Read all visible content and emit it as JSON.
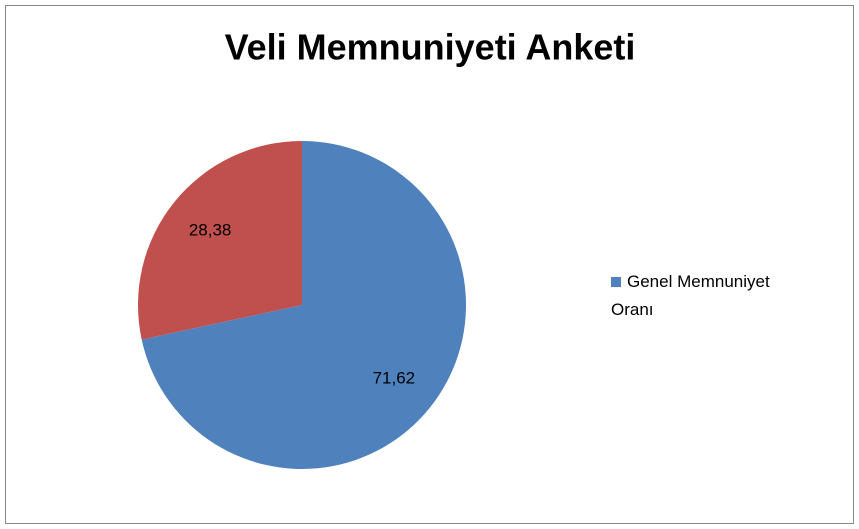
{
  "chart_data": {
    "type": "pie",
    "title": "Veli Memnuniyeti Anketi",
    "categories": [
      "Genel Memnuniyet Oranı",
      null
    ],
    "values": [
      71.62,
      28.38
    ],
    "value_labels": [
      "71,62",
      "28,38"
    ],
    "colors": [
      "#4f81bd",
      "#c0504d"
    ],
    "legend": "right"
  }
}
